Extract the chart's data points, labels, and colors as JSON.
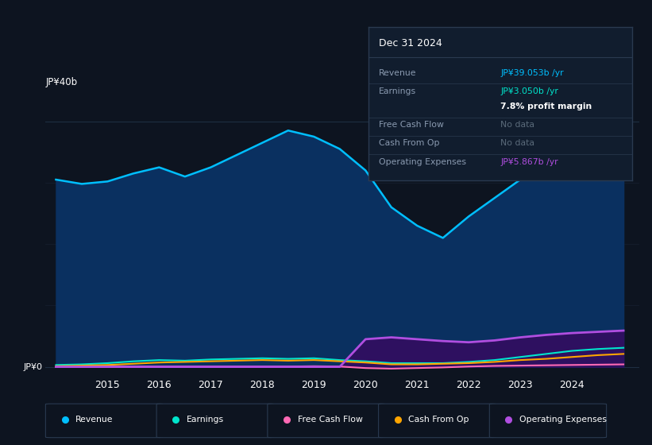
{
  "bg_color": "#0d1420",
  "plot_bg_color": "#0d1420",
  "revenue_color": "#00bfff",
  "earnings_color": "#00e5cc",
  "fcf_color": "#ff69b4",
  "cashfromop_color": "#ffa500",
  "opex_color": "#b04ee0",
  "revenue_fill_color": "#0a3060",
  "opex_fill_color": "#2e1060",
  "years_x": [
    2014.0,
    2014.5,
    2015.0,
    2015.5,
    2016.0,
    2016.5,
    2017.0,
    2017.5,
    2018.0,
    2018.5,
    2019.0,
    2019.5,
    2020.0,
    2020.5,
    2021.0,
    2021.5,
    2022.0,
    2022.5,
    2023.0,
    2023.5,
    2024.0,
    2024.5,
    2025.0
  ],
  "revenue": [
    30.5,
    29.8,
    30.2,
    31.5,
    32.5,
    31.0,
    32.5,
    34.5,
    36.5,
    38.5,
    37.5,
    35.5,
    32.0,
    26.0,
    23.0,
    21.0,
    24.5,
    27.5,
    30.5,
    33.0,
    35.5,
    38.0,
    39.5
  ],
  "earnings": [
    0.3,
    0.4,
    0.6,
    0.9,
    1.1,
    1.0,
    1.2,
    1.3,
    1.4,
    1.3,
    1.4,
    1.1,
    0.9,
    0.6,
    0.6,
    0.6,
    0.8,
    1.1,
    1.6,
    2.1,
    2.6,
    2.9,
    3.1
  ],
  "fcf": [
    0.0,
    0.0,
    0.05,
    0.05,
    0.05,
    0.05,
    0.05,
    0.05,
    0.05,
    0.05,
    0.1,
    0.05,
    -0.2,
    -0.3,
    -0.2,
    -0.1,
    0.05,
    0.15,
    0.2,
    0.25,
    0.3,
    0.35,
    0.4
  ],
  "cashfromop": [
    0.1,
    0.2,
    0.3,
    0.5,
    0.7,
    0.8,
    0.9,
    1.0,
    1.1,
    1.0,
    1.1,
    0.9,
    0.7,
    0.4,
    0.4,
    0.5,
    0.6,
    0.8,
    1.1,
    1.3,
    1.6,
    1.9,
    2.1
  ],
  "opex": [
    0.0,
    0.0,
    0.0,
    0.0,
    0.0,
    0.0,
    0.0,
    0.0,
    0.0,
    0.0,
    0.0,
    0.0,
    4.5,
    4.8,
    4.5,
    4.2,
    4.0,
    4.3,
    4.8,
    5.2,
    5.5,
    5.7,
    5.9
  ],
  "xlim": [
    2013.8,
    2025.3
  ],
  "ylim": [
    -1.5,
    42
  ],
  "ytick_labels": [
    "JP¥0",
    "JP¥40b"
  ],
  "ytick_positions": [
    0,
    40
  ],
  "xtick_positions": [
    2015,
    2016,
    2017,
    2018,
    2019,
    2020,
    2021,
    2022,
    2023,
    2024
  ],
  "xtick_labels": [
    "2015",
    "2016",
    "2017",
    "2018",
    "2019",
    "2020",
    "2021",
    "2022",
    "2023",
    "2024"
  ],
  "legend_items": [
    {
      "label": "Revenue",
      "color": "#00bfff"
    },
    {
      "label": "Earnings",
      "color": "#00e5cc"
    },
    {
      "label": "Free Cash Flow",
      "color": "#ff69b4"
    },
    {
      "label": "Cash From Op",
      "color": "#ffa500"
    },
    {
      "label": "Operating Expenses",
      "color": "#b04ee0"
    }
  ],
  "info_title": "Dec 31 2024",
  "info_rows": [
    {
      "label": "Revenue",
      "value": "JP¥39.053b /yr",
      "value_color": "#00bfff",
      "has_line": true
    },
    {
      "label": "Earnings",
      "value": "JP¥3.050b /yr",
      "value_color": "#00e5cc",
      "has_line": false
    },
    {
      "label": "",
      "value": "7.8% profit margin",
      "value_color": "#ffffff",
      "has_line": true,
      "value_bold": true
    },
    {
      "label": "Free Cash Flow",
      "value": "No data",
      "value_color": "#5a6a7a",
      "has_line": true
    },
    {
      "label": "Cash From Op",
      "value": "No data",
      "value_color": "#5a6a7a",
      "has_line": true
    },
    {
      "label": "Operating Expenses",
      "value": "JP¥5.867b /yr",
      "value_color": "#b04ee0",
      "has_line": false
    }
  ]
}
